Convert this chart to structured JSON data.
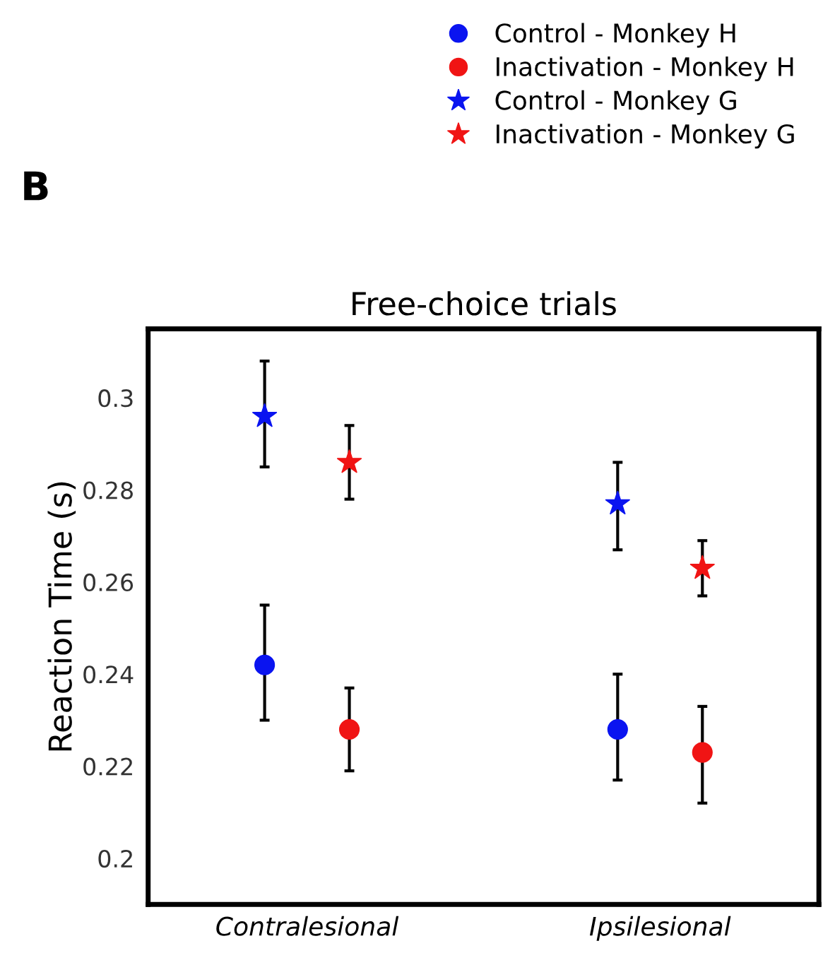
{
  "chart_data": {
    "type": "scatter",
    "title": "Free-choice trials",
    "ylabel": "Reaction Time (s)",
    "annotations": [
      "B"
    ],
    "categories": [
      "Contralesional",
      "Ipsilesional"
    ],
    "series": [
      {
        "name": "Control - Monkey H",
        "color": "#0a14f0",
        "marker": "circle",
        "values": [
          0.242,
          0.228
        ],
        "errors": [
          [
            0.23,
            0.255
          ],
          [
            0.217,
            0.24
          ]
        ]
      },
      {
        "name": "Inactivation - Monkey H",
        "color": "#f01414",
        "marker": "circle",
        "values": [
          0.228,
          0.223
        ],
        "errors": [
          [
            0.219,
            0.237
          ],
          [
            0.212,
            0.233
          ]
        ]
      },
      {
        "name": "Control - Monkey G",
        "color": "#0a14f0",
        "marker": "star",
        "values": [
          0.296,
          0.277
        ],
        "errors": [
          [
            0.285,
            0.308
          ],
          [
            0.267,
            0.286
          ]
        ]
      },
      {
        "name": "Inactivation - Monkey G",
        "color": "#f01414",
        "marker": "star",
        "values": [
          0.286,
          0.263
        ],
        "errors": [
          [
            0.278,
            0.294
          ],
          [
            0.257,
            0.269
          ]
        ]
      }
    ],
    "ylim": [
      0.19,
      0.315
    ],
    "yticks": [
      0.2,
      0.22,
      0.24,
      0.26,
      0.28,
      0.3
    ],
    "grid": false,
    "legend": "top right"
  }
}
